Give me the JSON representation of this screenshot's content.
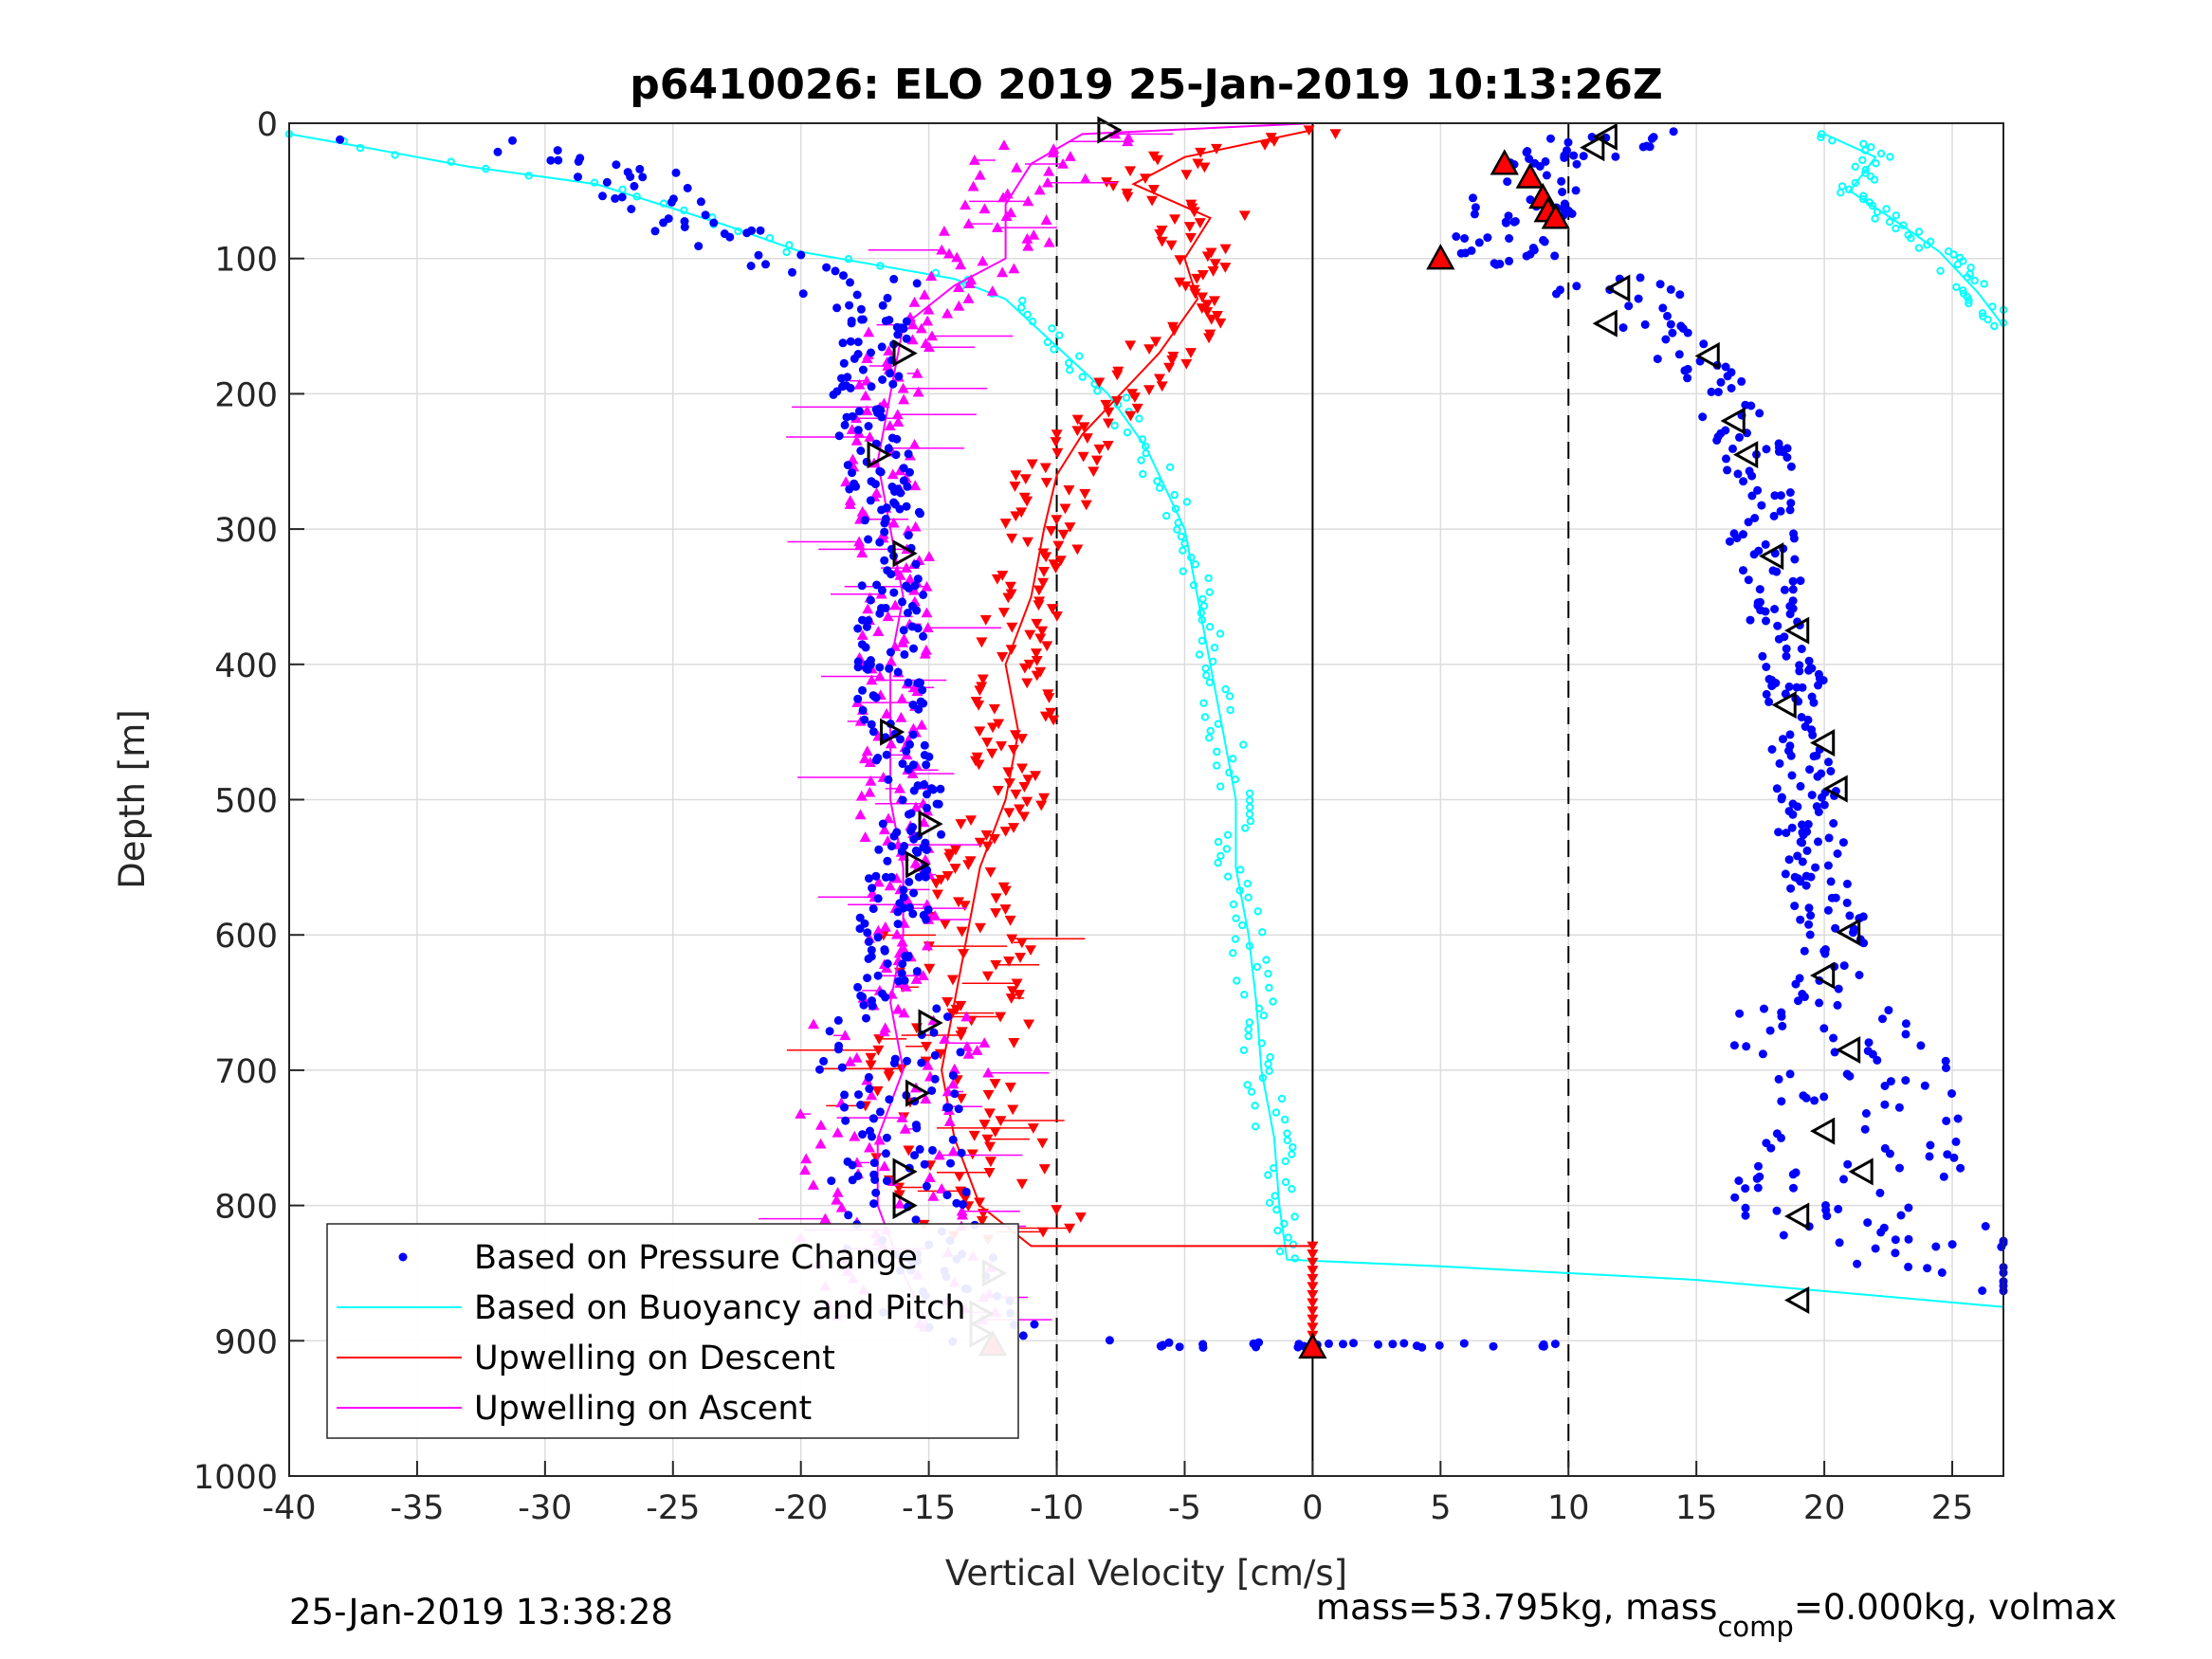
{
  "chart_data": {
    "type": "scatter",
    "title": "p6410026: ELO 2019 25-Jan-2019 10:13:26Z",
    "xlabel": "Vertical Velocity [cm/s]",
    "ylabel": "Depth [m]",
    "xlim": [
      -40,
      27
    ],
    "ylim": [
      0,
      1000
    ],
    "y_reversed": true,
    "grid": true,
    "x_ticks": [
      "-40",
      "-35",
      "-30",
      "-25",
      "-20",
      "-15",
      "-10",
      "-5",
      "0",
      "5",
      "10",
      "15",
      "20",
      "25"
    ],
    "y_ticks": [
      "0",
      "100",
      "200",
      "300",
      "400",
      "500",
      "600",
      "700",
      "800",
      "900",
      "1000"
    ],
    "reference_lines": [
      {
        "x": -10,
        "style": "dashed",
        "color": "#000000"
      },
      {
        "x": 0,
        "style": "solid",
        "color": "#000000"
      },
      {
        "x": 10,
        "style": "dashed",
        "color": "#000000"
      }
    ],
    "legend_position": "bottom-left",
    "series": [
      {
        "name": "Based on Pressure Change",
        "color": "#0000ff",
        "marker": "dot",
        "descent": [
          [
            -38,
            8
          ],
          [
            -30,
            20
          ],
          [
            -26,
            45
          ],
          [
            -24,
            75
          ],
          [
            -21,
            100
          ],
          [
            -18,
            115
          ],
          [
            -17,
            150
          ],
          [
            -17.5,
            200
          ],
          [
            -17,
            250
          ],
          [
            -16.5,
            300
          ],
          [
            -16.5,
            350
          ],
          [
            -16.5,
            400
          ],
          [
            -16.5,
            450
          ],
          [
            -15.5,
            500
          ],
          [
            -16,
            550
          ],
          [
            -16.5,
            600
          ],
          [
            -16.5,
            650
          ],
          [
            -16.5,
            700
          ],
          [
            -16.5,
            750
          ],
          [
            -16,
            800
          ],
          [
            -15,
            850
          ],
          [
            -14,
            880
          ],
          [
            -12.5,
            900
          ],
          [
            -5,
            903
          ],
          [
            0,
            903
          ],
          [
            5,
            903
          ],
          [
            10,
            903
          ]
        ],
        "ascent": [
          [
            26,
            860
          ],
          [
            21,
            800
          ],
          [
            21,
            750
          ],
          [
            20.5,
            700
          ],
          [
            20,
            650
          ],
          [
            20.5,
            600
          ],
          [
            19.5,
            550
          ],
          [
            19.5,
            500
          ],
          [
            19,
            450
          ],
          [
            19,
            400
          ],
          [
            18,
            350
          ],
          [
            17.5,
            300
          ],
          [
            17.5,
            250
          ],
          [
            16,
            200
          ],
          [
            14,
            160
          ],
          [
            12,
            130
          ],
          [
            10.5,
            110
          ],
          [
            7,
            100
          ],
          [
            5,
            100
          ],
          [
            8,
            60
          ],
          [
            9.5,
            40
          ],
          [
            10.5,
            20
          ],
          [
            12,
            8
          ]
        ]
      },
      {
        "name": "Based on Buoyancy and Pitch",
        "color": "#00ffff",
        "marker": "line",
        "descent": [
          [
            -40,
            8
          ],
          [
            -37,
            18
          ],
          [
            -33,
            32
          ],
          [
            -28,
            45
          ],
          [
            -23,
            75
          ],
          [
            -20,
            95
          ],
          [
            -17,
            105
          ],
          [
            -14,
            115
          ],
          [
            -12,
            130
          ],
          [
            -10,
            165
          ],
          [
            -8,
            200
          ],
          [
            -6.5,
            240
          ],
          [
            -5,
            300
          ],
          [
            -4.5,
            350
          ],
          [
            -4,
            400
          ],
          [
            -3.5,
            450
          ],
          [
            -3,
            500
          ],
          [
            -3,
            550
          ],
          [
            -2.5,
            600
          ],
          [
            -2.2,
            650
          ],
          [
            -2,
            700
          ],
          [
            -1.5,
            750
          ],
          [
            -1.3,
            800
          ],
          [
            -1,
            840
          ],
          [
            5,
            845
          ],
          [
            15,
            855
          ],
          [
            27,
            875
          ]
        ],
        "ascent": [
          [
            20,
            8
          ],
          [
            22,
            25
          ],
          [
            21,
            50
          ],
          [
            23,
            75
          ],
          [
            24.5,
            95
          ],
          [
            26,
            125
          ],
          [
            27,
            150
          ]
        ]
      },
      {
        "name": "Upwelling on Descent",
        "color": "#ff0000",
        "marker": "triangle-down",
        "values": [
          [
            0,
            5
          ],
          [
            -5,
            25
          ],
          [
            -7,
            45
          ],
          [
            -4,
            70
          ],
          [
            -5,
            100
          ],
          [
            -4.5,
            130
          ],
          [
            -6,
            170
          ],
          [
            -7.5,
            200
          ],
          [
            -9,
            230
          ],
          [
            -10,
            260
          ],
          [
            -10.5,
            300
          ],
          [
            -11,
            350
          ],
          [
            -12,
            400
          ],
          [
            -11.5,
            450
          ],
          [
            -12,
            500
          ],
          [
            -13,
            550
          ],
          [
            -13.5,
            600
          ],
          [
            -14,
            650
          ],
          [
            -14.5,
            700
          ],
          [
            -14,
            750
          ],
          [
            -13,
            800
          ],
          [
            -11,
            830
          ],
          [
            0,
            830
          ],
          [
            0,
            900
          ]
        ]
      },
      {
        "name": "Upwelling on Ascent",
        "color": "#ff00ff",
        "marker": "triangle-up",
        "values": [
          [
            -15,
            890
          ],
          [
            -16,
            850
          ],
          [
            -17,
            800
          ],
          [
            -17,
            750
          ],
          [
            -16,
            700
          ],
          [
            -16.5,
            650
          ],
          [
            -16,
            600
          ],
          [
            -16,
            550
          ],
          [
            -16.5,
            500
          ],
          [
            -16.5,
            450
          ],
          [
            -16.5,
            400
          ],
          [
            -16,
            350
          ],
          [
            -16.5,
            300
          ],
          [
            -17,
            250
          ],
          [
            -16.5,
            200
          ],
          [
            -16,
            150
          ],
          [
            -14,
            120
          ],
          [
            -12,
            100
          ],
          [
            -12,
            60
          ],
          [
            -11,
            30
          ],
          [
            -9,
            8
          ],
          [
            0,
            0
          ]
        ]
      },
      {
        "name": "markers-descent",
        "color": "#000000",
        "marker": "open-triangle-right",
        "values": [
          [
            -16,
            170
          ],
          [
            -17,
            245
          ],
          [
            -16,
            318
          ],
          [
            -16.5,
            450
          ],
          [
            -15,
            518
          ],
          [
            -15.5,
            548
          ],
          [
            -15,
            665
          ],
          [
            -15.5,
            717
          ],
          [
            -16,
            775
          ],
          [
            -16,
            800
          ],
          [
            -12.5,
            850
          ],
          [
            -13,
            880
          ],
          [
            -13,
            895
          ],
          [
            -8,
            5
          ]
        ]
      },
      {
        "name": "markers-ascent",
        "color": "#000000",
        "marker": "open-triangle-left",
        "values": [
          [
            19,
            870
          ],
          [
            19,
            808
          ],
          [
            21.5,
            775
          ],
          [
            20,
            745
          ],
          [
            21,
            685
          ],
          [
            20,
            630
          ],
          [
            21,
            598
          ],
          [
            20.5,
            492
          ],
          [
            20,
            458
          ],
          [
            18.5,
            430
          ],
          [
            19,
            375
          ],
          [
            18,
            320
          ],
          [
            17,
            245
          ],
          [
            16.5,
            220
          ],
          [
            15.5,
            172
          ],
          [
            11.5,
            148
          ],
          [
            12,
            122
          ],
          [
            11,
            18
          ],
          [
            11.5,
            10
          ]
        ]
      },
      {
        "name": "surface-markers",
        "color": "#ff0000",
        "marker": "filled-triangle",
        "values": [
          [
            7.5,
            30
          ],
          [
            8.5,
            40
          ],
          [
            9,
            55
          ],
          [
            9.2,
            65
          ],
          [
            9.5,
            70
          ],
          [
            5,
            100
          ],
          [
            0,
            905
          ],
          [
            -12.5,
            903
          ]
        ]
      }
    ]
  },
  "legend": {
    "items": [
      {
        "label": "Based on Pressure Change",
        "color": "#0000ff",
        "kind": "dot"
      },
      {
        "label": "Based on Buoyancy and Pitch",
        "color": "#00ffff",
        "kind": "line"
      },
      {
        "label": "Upwelling on Descent",
        "color": "#ff0000",
        "kind": "line"
      },
      {
        "label": "Upwelling on Ascent",
        "color": "#ff00ff",
        "kind": "line"
      }
    ]
  },
  "footer": {
    "timestamp": "25-Jan-2019 13:38:28",
    "mass_prefix": "mass=53.795kg, mass",
    "mass_sub": "comp",
    "mass_suffix": "=0.000kg, volmax"
  }
}
